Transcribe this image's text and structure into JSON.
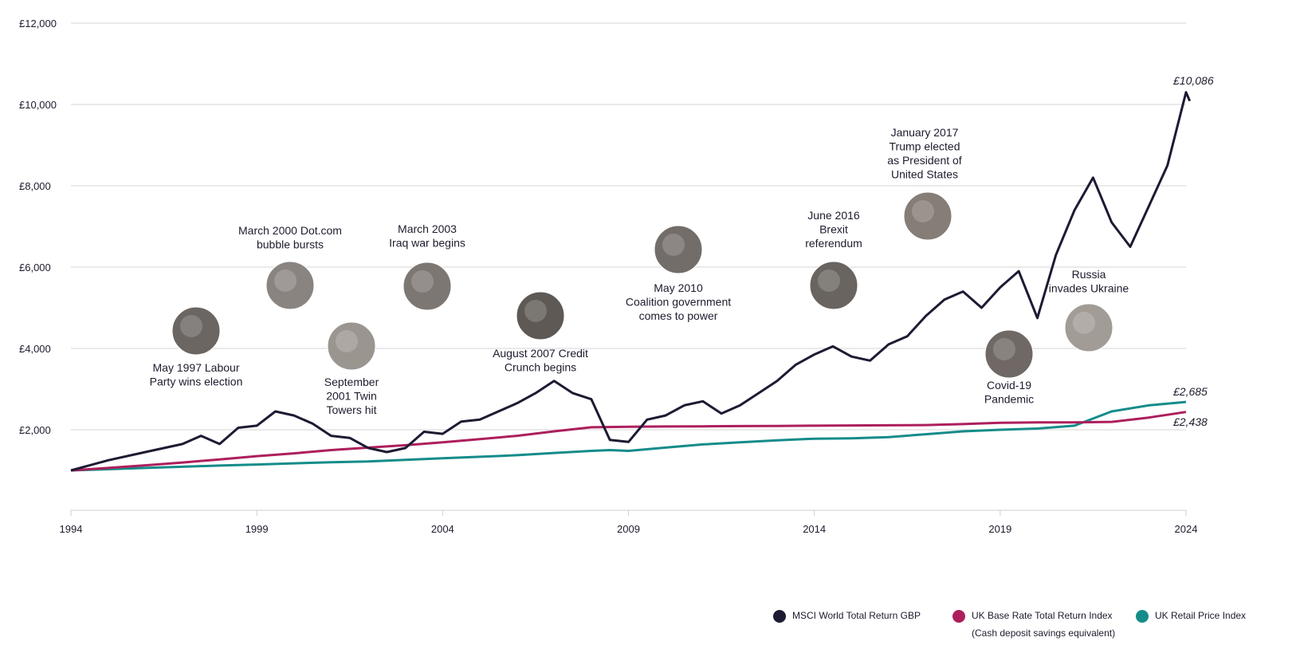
{
  "chart_data": {
    "type": "line",
    "xlim": [
      1994,
      2024
    ],
    "ylim": [
      0,
      12000
    ],
    "x_ticks": [
      "1994",
      "1999",
      "2004",
      "2009",
      "2014",
      "2019",
      "2024"
    ],
    "y_ticks": [
      "£2,000",
      "£4,000",
      "£6,000",
      "£8,000",
      "£10,000",
      "£12,000"
    ],
    "y_tick_values": [
      2000,
      4000,
      6000,
      8000,
      10000,
      12000
    ],
    "grid": "horizontal",
    "legend_position": "bottom-right",
    "series": [
      {
        "name": "MSCI World Total Return GBP",
        "color": "#1c1b33",
        "points": [
          [
            1994,
            1000
          ],
          [
            1995,
            1250
          ],
          [
            1996,
            1450
          ],
          [
            1997,
            1650
          ],
          [
            1997.5,
            1850
          ],
          [
            1998,
            1650
          ],
          [
            1998.5,
            2050
          ],
          [
            1999,
            2100
          ],
          [
            1999.5,
            2450
          ],
          [
            2000,
            2350
          ],
          [
            2000.5,
            2150
          ],
          [
            2001,
            1850
          ],
          [
            2001.5,
            1800
          ],
          [
            2002,
            1550
          ],
          [
            2002.5,
            1450
          ],
          [
            2003,
            1550
          ],
          [
            2003.5,
            1950
          ],
          [
            2004,
            1900
          ],
          [
            2004.5,
            2200
          ],
          [
            2005,
            2250
          ],
          [
            2005.5,
            2450
          ],
          [
            2006,
            2650
          ],
          [
            2006.5,
            2900
          ],
          [
            2007,
            3200
          ],
          [
            2007.5,
            2900
          ],
          [
            2008,
            2750
          ],
          [
            2008.5,
            1750
          ],
          [
            2009,
            1700
          ],
          [
            2009.5,
            2250
          ],
          [
            2010,
            2350
          ],
          [
            2010.5,
            2600
          ],
          [
            2011,
            2700
          ],
          [
            2011.5,
            2400
          ],
          [
            2012,
            2600
          ],
          [
            2012.5,
            2900
          ],
          [
            2013,
            3200
          ],
          [
            2013.5,
            3600
          ],
          [
            2014,
            3850
          ],
          [
            2014.5,
            4050
          ],
          [
            2015,
            3800
          ],
          [
            2015.5,
            3700
          ],
          [
            2016,
            4100
          ],
          [
            2016.5,
            4300
          ],
          [
            2017,
            4800
          ],
          [
            2017.5,
            5200
          ],
          [
            2018,
            5400
          ],
          [
            2018.5,
            5000
          ],
          [
            2019,
            5500
          ],
          [
            2019.5,
            5900
          ],
          [
            2020,
            4750
          ],
          [
            2020.5,
            6300
          ],
          [
            2021,
            7400
          ],
          [
            2021.5,
            8200
          ],
          [
            2022,
            7100
          ],
          [
            2022.5,
            6500
          ],
          [
            2023,
            7500
          ],
          [
            2023.5,
            8500
          ],
          [
            2024,
            10300
          ],
          [
            2024.1,
            10086
          ]
        ]
      },
      {
        "name": "UK Base Rate Total Return Index",
        "name_line2": "(Cash deposit savings equivalent)",
        "color": "#ad1f5c",
        "points": [
          [
            1994,
            1000
          ],
          [
            1995,
            1060
          ],
          [
            1996,
            1125
          ],
          [
            1997,
            1195
          ],
          [
            1998,
            1270
          ],
          [
            1999,
            1350
          ],
          [
            2000,
            1420
          ],
          [
            2001,
            1500
          ],
          [
            2002,
            1560
          ],
          [
            2003,
            1620
          ],
          [
            2004,
            1690
          ],
          [
            2005,
            1770
          ],
          [
            2006,
            1850
          ],
          [
            2007,
            1960
          ],
          [
            2008,
            2060
          ],
          [
            2009,
            2075
          ],
          [
            2010,
            2080
          ],
          [
            2011,
            2085
          ],
          [
            2012,
            2090
          ],
          [
            2013,
            2095
          ],
          [
            2014,
            2100
          ],
          [
            2015,
            2105
          ],
          [
            2016,
            2110
          ],
          [
            2017,
            2115
          ],
          [
            2018,
            2140
          ],
          [
            2019,
            2170
          ],
          [
            2020,
            2180
          ],
          [
            2021,
            2181
          ],
          [
            2022,
            2195
          ],
          [
            2023,
            2300
          ],
          [
            2024,
            2438
          ]
        ]
      },
      {
        "name": "UK Retail Price Index",
        "color": "#158c8a",
        "points": [
          [
            1994,
            1000
          ],
          [
            1995,
            1030
          ],
          [
            1996,
            1060
          ],
          [
            1997,
            1090
          ],
          [
            1998,
            1120
          ],
          [
            1999,
            1145
          ],
          [
            2000,
            1175
          ],
          [
            2001,
            1200
          ],
          [
            2002,
            1220
          ],
          [
            2003,
            1260
          ],
          [
            2004,
            1300
          ],
          [
            2005,
            1335
          ],
          [
            2006,
            1375
          ],
          [
            2007,
            1430
          ],
          [
            2008,
            1480
          ],
          [
            2008.5,
            1500
          ],
          [
            2009,
            1480
          ],
          [
            2010,
            1560
          ],
          [
            2011,
            1640
          ],
          [
            2012,
            1690
          ],
          [
            2013,
            1740
          ],
          [
            2014,
            1780
          ],
          [
            2015,
            1790
          ],
          [
            2016,
            1820
          ],
          [
            2017,
            1890
          ],
          [
            2018,
            1960
          ],
          [
            2019,
            2000
          ],
          [
            2020,
            2030
          ],
          [
            2021,
            2100
          ],
          [
            2022,
            2450
          ],
          [
            2023,
            2600
          ],
          [
            2024,
            2685
          ]
        ]
      }
    ],
    "end_labels": [
      "£10,086",
      "£2,685",
      "£2,438"
    ],
    "annotations": [
      {
        "lines": [
          "May 1997 Labour",
          "Party wins election"
        ],
        "image": "labour-leader-photo",
        "shade": "#6b6662"
      },
      {
        "lines": [
          "March 2000 Dot.com",
          "bubble bursts"
        ],
        "image": "dotcom-sign-photo",
        "shade": "#8a8480"
      },
      {
        "lines": [
          "September",
          "2001 Twin",
          "Towers hit"
        ],
        "image": "twin-towers-photo",
        "shade": "#9b9590"
      },
      {
        "lines": [
          "March 2003",
          "Iraq war begins"
        ],
        "image": "protest-sign-photo",
        "shade": "#7d7773"
      },
      {
        "lines": [
          "August 2007 Credit",
          "Crunch begins"
        ],
        "image": "bank-sign-photo",
        "shade": "#5e5955"
      },
      {
        "lines": [
          "May 2010",
          "Coalition government",
          "comes to power"
        ],
        "image": "coalition-leaders-photo",
        "shade": "#736d69"
      },
      {
        "lines": [
          "June 2016",
          "Brexit",
          "referendum"
        ],
        "image": "brexit-leader-photo",
        "shade": "#6a6460"
      },
      {
        "lines": [
          "January 2017",
          "Trump elected",
          "as President of",
          "United States"
        ],
        "image": "trump-portrait-photo",
        "shade": "#857d76"
      },
      {
        "lines": [
          "Covid-19",
          "Pandemic"
        ],
        "image": "virus-photo",
        "shade": "#6f6864"
      },
      {
        "lines": [
          "Russia",
          "invades Ukraine"
        ],
        "image": "tank-photo",
        "shade": "#a29c96"
      }
    ]
  }
}
